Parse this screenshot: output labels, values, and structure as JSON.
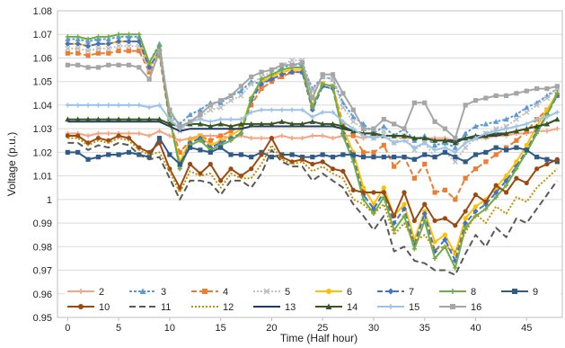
{
  "chart_data": {
    "type": "line",
    "title": "",
    "xlabel": "Time (Half hour)",
    "ylabel": "Voltage (p.u.)",
    "xlim": [
      -1,
      48.5
    ],
    "ylim": [
      0.95,
      1.08
    ],
    "xticks": [
      0,
      5,
      10,
      15,
      20,
      25,
      30,
      35,
      40,
      45
    ],
    "yticks": [
      0.95,
      0.96,
      0.97,
      0.98,
      0.99,
      1,
      1.01,
      1.02,
      1.03,
      1.04,
      1.05,
      1.06,
      1.07,
      1.08
    ],
    "ytick_labels": [
      "0.95",
      "0.96",
      "0.97",
      "0.98",
      "0.99",
      "1",
      "1.01",
      "1.02",
      "1.03",
      "1.04",
      "1.05",
      "1.06",
      "1.07",
      "1.08"
    ],
    "grid": "horizontal",
    "legend_position": "bottom",
    "x": [
      0,
      1,
      2,
      3,
      4,
      5,
      6,
      7,
      8,
      9,
      10,
      11,
      12,
      13,
      14,
      15,
      16,
      17,
      18,
      19,
      20,
      21,
      22,
      23,
      24,
      25,
      26,
      27,
      28,
      29,
      30,
      31,
      32,
      33,
      34,
      35,
      36,
      37,
      38,
      39,
      40,
      41,
      42,
      43,
      44,
      45,
      46,
      47,
      48
    ],
    "series": [
      {
        "name": "2",
        "color": "#f4a582",
        "dash": "",
        "marker": "plus",
        "values": [
          1.028,
          1.028,
          1.027,
          1.028,
          1.028,
          1.028,
          1.028,
          1.028,
          1.027,
          1.029,
          1.027,
          1.025,
          1.026,
          1.027,
          1.027,
          1.027,
          1.026,
          1.027,
          1.026,
          1.026,
          1.026,
          1.027,
          1.026,
          1.026,
          1.027,
          1.027,
          1.026,
          1.027,
          1.027,
          1.026,
          1.027,
          1.027,
          1.027,
          1.026,
          1.026,
          1.026,
          1.026,
          1.026,
          1.025,
          1.026,
          1.026,
          1.026,
          1.027,
          1.027,
          1.028,
          1.028,
          1.029,
          1.029,
          1.03
        ]
      },
      {
        "name": "3",
        "color": "#5b9bd5",
        "dash": "3,2",
        "marker": "triangle",
        "values": [
          1.068,
          1.068,
          1.067,
          1.068,
          1.068,
          1.069,
          1.069,
          1.069,
          1.058,
          1.066,
          1.036,
          1.032,
          1.036,
          1.038,
          1.041,
          1.041,
          1.044,
          1.046,
          1.05,
          1.049,
          1.052,
          1.056,
          1.057,
          1.057,
          1.047,
          1.052,
          1.051,
          1.041,
          1.035,
          1.032,
          1.028,
          1.031,
          1.027,
          1.03,
          1.025,
          1.027,
          1.023,
          1.024,
          1.022,
          1.028,
          1.031,
          1.032,
          1.033,
          1.034,
          1.036,
          1.039,
          1.041,
          1.044,
          1.047
        ]
      },
      {
        "name": "4",
        "color": "#ed7d31",
        "dash": "6,3",
        "marker": "square",
        "values": [
          1.062,
          1.062,
          1.061,
          1.062,
          1.062,
          1.063,
          1.063,
          1.063,
          1.054,
          1.061,
          1.033,
          1.02,
          1.025,
          1.027,
          1.025,
          1.027,
          1.029,
          1.031,
          1.04,
          1.047,
          1.05,
          1.052,
          1.054,
          1.054,
          1.04,
          1.049,
          1.048,
          1.032,
          1.027,
          1.02,
          1.02,
          1.023,
          1.014,
          1.018,
          1.009,
          1.015,
          1.003,
          1.004,
          1.0,
          1.009,
          1.013,
          1.016,
          1.019,
          1.022,
          1.025,
          1.029,
          1.034,
          1.038,
          1.044
        ]
      },
      {
        "name": "5",
        "color": "#bfbfbf",
        "dash": "2,2",
        "marker": "x",
        "values": [
          1.064,
          1.064,
          1.063,
          1.064,
          1.064,
          1.065,
          1.065,
          1.065,
          1.055,
          1.064,
          1.036,
          1.029,
          1.033,
          1.035,
          1.038,
          1.039,
          1.042,
          1.044,
          1.049,
          1.052,
          1.054,
          1.057,
          1.059,
          1.059,
          1.046,
          1.052,
          1.051,
          1.039,
          1.033,
          1.03,
          1.026,
          1.029,
          1.024,
          1.027,
          1.021,
          1.024,
          1.018,
          1.02,
          1.016,
          1.022,
          1.026,
          1.028,
          1.03,
          1.031,
          1.034,
          1.037,
          1.04,
          1.043,
          1.047
        ]
      },
      {
        "name": "6",
        "color": "#ffc000",
        "dash": "",
        "marker": "circle",
        "values": [
          1.066,
          1.066,
          1.065,
          1.066,
          1.066,
          1.067,
          1.067,
          1.067,
          1.056,
          1.063,
          1.034,
          1.016,
          1.025,
          1.027,
          1.023,
          1.025,
          1.027,
          1.03,
          1.043,
          1.05,
          1.052,
          1.054,
          1.055,
          1.055,
          1.039,
          1.049,
          1.048,
          1.03,
          1.02,
          1.005,
          0.998,
          1.005,
          0.993,
          0.998,
          0.983,
          0.995,
          0.982,
          0.985,
          0.977,
          0.992,
          0.997,
          1.0,
          1.005,
          1.01,
          1.016,
          1.023,
          1.031,
          1.038,
          1.045
        ]
      },
      {
        "name": "7",
        "color": "#4472c4",
        "dash": "6,3",
        "marker": "diamond",
        "values": [
          1.066,
          1.066,
          1.065,
          1.066,
          1.066,
          1.067,
          1.067,
          1.067,
          1.056,
          1.063,
          1.034,
          1.014,
          1.024,
          1.026,
          1.022,
          1.024,
          1.026,
          1.028,
          1.042,
          1.049,
          1.051,
          1.053,
          1.054,
          1.054,
          1.038,
          1.048,
          1.047,
          1.028,
          1.018,
          1.002,
          0.996,
          1.003,
          0.99,
          0.996,
          0.981,
          0.994,
          0.978,
          0.983,
          0.974,
          0.99,
          0.995,
          0.998,
          1.003,
          1.008,
          1.014,
          1.021,
          1.029,
          1.036,
          1.044
        ]
      },
      {
        "name": "8",
        "color": "#70ad47",
        "dash": "",
        "marker": "plus",
        "values": [
          1.069,
          1.069,
          1.068,
          1.069,
          1.069,
          1.07,
          1.07,
          1.07,
          1.058,
          1.065,
          1.035,
          1.013,
          1.023,
          1.025,
          1.021,
          1.023,
          1.025,
          1.028,
          1.043,
          1.051,
          1.053,
          1.055,
          1.056,
          1.056,
          1.039,
          1.049,
          1.048,
          1.027,
          1.016,
          1.0,
          0.994,
          1.001,
          0.987,
          0.993,
          0.979,
          0.991,
          0.975,
          0.98,
          0.971,
          0.988,
          0.993,
          0.996,
          1.001,
          1.006,
          1.013,
          1.02,
          1.028,
          1.036,
          1.045
        ]
      },
      {
        "name": "9",
        "color": "#2e5c8a",
        "dash": "",
        "marker": "square",
        "values": [
          1.02,
          1.02,
          1.017,
          1.018,
          1.019,
          1.019,
          1.02,
          1.019,
          1.018,
          1.026,
          1.019,
          1.015,
          1.022,
          1.021,
          1.02,
          1.022,
          1.019,
          1.019,
          1.018,
          1.02,
          1.018,
          1.019,
          1.019,
          1.018,
          1.018,
          1.019,
          1.018,
          1.019,
          1.019,
          1.018,
          1.018,
          1.018,
          1.018,
          1.018,
          1.017,
          1.019,
          1.018,
          1.02,
          1.018,
          1.016,
          1.019,
          1.02,
          1.022,
          1.021,
          1.022,
          1.021,
          1.018,
          1.017,
          1.016
        ]
      },
      {
        "name": "10",
        "color": "#9c4a12",
        "dash": "",
        "marker": "circle",
        "values": [
          1.027,
          1.027,
          1.024,
          1.026,
          1.025,
          1.027,
          1.026,
          1.022,
          1.02,
          1.024,
          1.013,
          1.005,
          1.015,
          1.011,
          1.015,
          1.008,
          1.013,
          1.01,
          1.013,
          1.019,
          1.026,
          1.018,
          1.016,
          1.017,
          1.015,
          1.016,
          1.013,
          1.012,
          1.004,
          1.003,
          1.003,
          1.003,
          0.993,
          1.003,
          0.991,
          0.998,
          0.991,
          0.992,
          0.989,
          0.995,
          1.002,
          0.999,
          1.006,
          1.003,
          1.009,
          1.007,
          1.013,
          1.015,
          1.017
        ]
      },
      {
        "name": "11",
        "color": "#595959",
        "dash": "7,4",
        "marker": "",
        "values": [
          1.024,
          1.024,
          1.021,
          1.023,
          1.022,
          1.024,
          1.023,
          1.019,
          1.017,
          1.018,
          1.009,
          1.0,
          1.008,
          1.008,
          1.007,
          1.002,
          1.008,
          1.008,
          1.005,
          1.011,
          1.021,
          1.016,
          1.014,
          1.014,
          1.008,
          1.011,
          1.008,
          1.005,
          0.998,
          0.993,
          0.987,
          0.993,
          0.978,
          0.98,
          0.974,
          0.973,
          0.97,
          0.97,
          0.968,
          0.977,
          0.985,
          0.98,
          0.988,
          0.984,
          0.992,
          0.99,
          0.996,
          1.002,
          1.008
        ]
      },
      {
        "name": "12",
        "color": "#bf9000",
        "dash": "2,2",
        "marker": "",
        "values": [
          1.026,
          1.026,
          1.023,
          1.025,
          1.024,
          1.026,
          1.025,
          1.021,
          1.019,
          1.02,
          1.012,
          1.003,
          1.012,
          1.01,
          1.011,
          1.005,
          1.011,
          1.009,
          1.009,
          1.015,
          1.023,
          1.017,
          1.015,
          1.016,
          1.012,
          1.014,
          1.011,
          1.009,
          1.0,
          0.998,
          0.994,
          0.998,
          0.985,
          0.99,
          0.982,
          0.985,
          0.979,
          0.98,
          0.978,
          0.986,
          0.994,
          0.99,
          0.997,
          0.994,
          1.001,
          0.999,
          1.005,
          1.009,
          1.013
        ]
      },
      {
        "name": "13",
        "color": "#203864",
        "dash": "",
        "marker": "",
        "values": [
          1.033,
          1.033,
          1.033,
          1.033,
          1.033,
          1.033,
          1.033,
          1.033,
          1.033,
          1.033,
          1.031,
          1.029,
          1.03,
          1.03,
          1.03,
          1.03,
          1.03,
          1.03,
          1.031,
          1.031,
          1.031,
          1.031,
          1.031,
          1.031,
          1.031,
          1.031,
          1.031,
          1.03,
          1.029,
          1.028,
          1.028,
          1.027,
          1.027,
          1.027,
          1.026,
          1.026,
          1.025,
          1.025,
          1.025,
          1.026,
          1.026,
          1.027,
          1.027,
          1.028,
          1.029,
          1.03,
          1.031,
          1.032,
          1.034
        ]
      },
      {
        "name": "14",
        "color": "#375623",
        "dash": "",
        "marker": "triangle",
        "values": [
          1.034,
          1.034,
          1.034,
          1.034,
          1.034,
          1.034,
          1.034,
          1.034,
          1.034,
          1.034,
          1.032,
          1.031,
          1.032,
          1.032,
          1.031,
          1.032,
          1.031,
          1.032,
          1.032,
          1.032,
          1.032,
          1.033,
          1.032,
          1.032,
          1.033,
          1.032,
          1.032,
          1.031,
          1.029,
          1.028,
          1.028,
          1.027,
          1.027,
          1.027,
          1.026,
          1.026,
          1.025,
          1.025,
          1.024,
          1.026,
          1.027,
          1.027,
          1.028,
          1.028,
          1.029,
          1.03,
          1.031,
          1.032,
          1.034
        ]
      },
      {
        "name": "15",
        "color": "#9dc3e6",
        "dash": "",
        "marker": "plus",
        "values": [
          1.04,
          1.04,
          1.04,
          1.04,
          1.04,
          1.04,
          1.04,
          1.04,
          1.039,
          1.04,
          1.034,
          1.03,
          1.033,
          1.034,
          1.033,
          1.034,
          1.034,
          1.034,
          1.037,
          1.038,
          1.038,
          1.038,
          1.038,
          1.038,
          1.035,
          1.037,
          1.037,
          1.033,
          1.03,
          1.027,
          1.026,
          1.027,
          1.024,
          1.025,
          1.022,
          1.024,
          1.021,
          1.022,
          1.02,
          1.024,
          1.026,
          1.028,
          1.029,
          1.03,
          1.031,
          1.032,
          1.034,
          1.035,
          1.037
        ]
      },
      {
        "name": "16",
        "color": "#a6a6a6",
        "dash": "",
        "marker": "square",
        "values": [
          1.057,
          1.057,
          1.056,
          1.056,
          1.057,
          1.057,
          1.057,
          1.056,
          1.051,
          1.063,
          1.038,
          1.031,
          1.033,
          1.036,
          1.04,
          1.042,
          1.044,
          1.048,
          1.052,
          1.054,
          1.055,
          1.057,
          1.057,
          1.058,
          1.043,
          1.053,
          1.053,
          1.045,
          1.038,
          1.03,
          1.03,
          1.034,
          1.032,
          1.03,
          1.041,
          1.041,
          1.033,
          1.03,
          1.026,
          1.04,
          1.042,
          1.043,
          1.044,
          1.044,
          1.045,
          1.046,
          1.047,
          1.047,
          1.048
        ]
      }
    ]
  }
}
